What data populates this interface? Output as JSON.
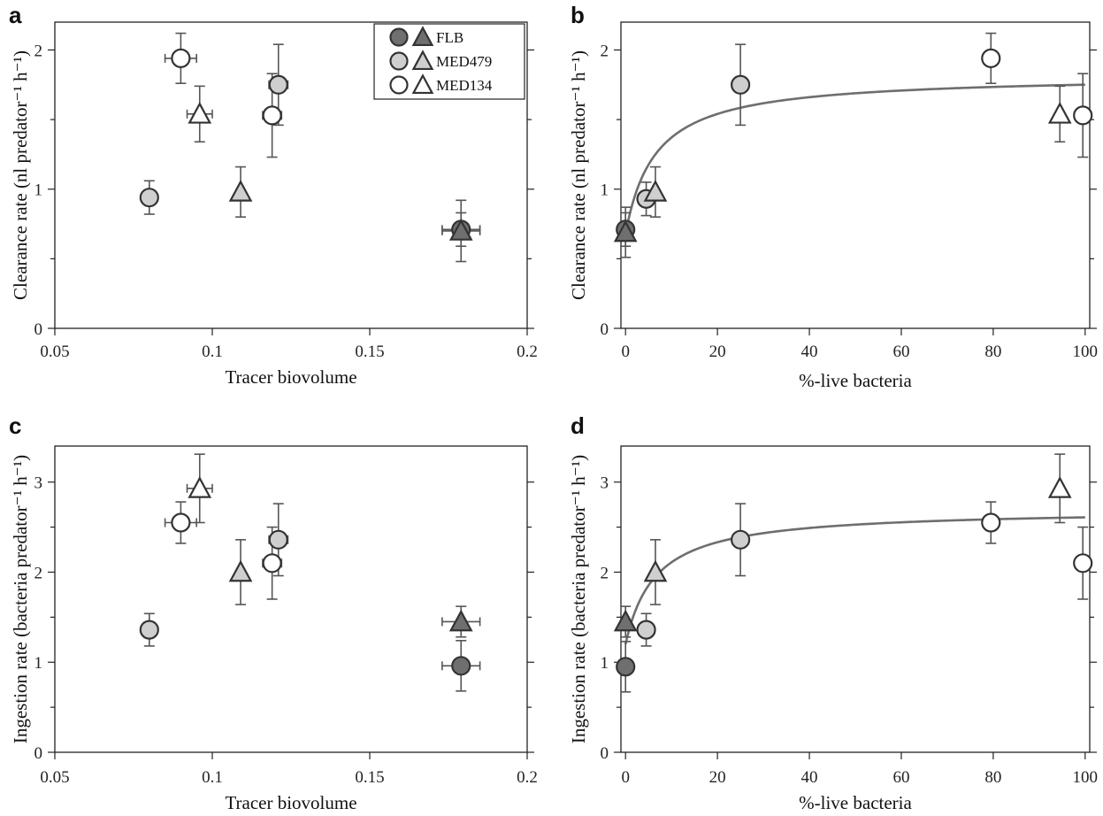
{
  "colors": {
    "FLB": "#6f6f6f",
    "MED479": "#cfcfcf",
    "MED134": "#ffffff",
    "fit": "#6e6e6e"
  },
  "legend": [
    {
      "label": "FLB",
      "group": "FLB"
    },
    {
      "label": "MED479",
      "group": "MED479"
    },
    {
      "label": "MED134",
      "group": "MED134"
    }
  ],
  "chart_data": [
    {
      "panel": "a",
      "type": "scatter",
      "xlabel": "Tracer biovolume",
      "ylabel": "Clearance rate (nl predator⁻¹ h⁻¹)",
      "xlim": [
        0.05,
        0.2
      ],
      "ylim": [
        0,
        2.2
      ],
      "xticks": [
        0.05,
        0.1,
        0.15,
        0.2
      ],
      "xtick_labels": [
        "0.05",
        "0.1",
        "0.15",
        "0.2"
      ],
      "yticks": [
        0,
        1,
        2
      ],
      "ytick_labels": [
        "0",
        "1",
        "2"
      ],
      "minor_yticks": [
        0.5,
        1.5
      ],
      "legend": "top-right",
      "points": [
        {
          "x": 0.09,
          "y": 1.94,
          "xerr": 0.005,
          "yerr": 0.18,
          "group": "MED134",
          "marker": "circle"
        },
        {
          "x": 0.096,
          "y": 1.54,
          "xerr": 0.004,
          "yerr": 0.2,
          "group": "MED134",
          "marker": "triangle"
        },
        {
          "x": 0.08,
          "y": 0.94,
          "xerr": 0,
          "yerr": 0.12,
          "group": "MED479",
          "marker": "circle"
        },
        {
          "x": 0.109,
          "y": 0.98,
          "xerr": 0,
          "yerr": 0.18,
          "group": "MED479",
          "marker": "triangle"
        },
        {
          "x": 0.121,
          "y": 1.75,
          "xerr": 0.003,
          "yerr": 0.29,
          "group": "MED479",
          "marker": "circle"
        },
        {
          "x": 0.119,
          "y": 1.53,
          "xerr": 0.003,
          "yerr": 0.3,
          "group": "MED134",
          "marker": "circle"
        },
        {
          "x": 0.179,
          "y": 0.71,
          "xerr": 0.006,
          "yerr": 0.12,
          "group": "FLB",
          "marker": "circle"
        },
        {
          "x": 0.179,
          "y": 0.7,
          "xerr": 0.006,
          "yerr": 0.22,
          "group": "FLB",
          "marker": "triangle"
        }
      ]
    },
    {
      "panel": "b",
      "type": "scatter",
      "xlabel": "%-live bacteria",
      "ylabel": "Clearance rate (nl predator⁻¹ h⁻¹)",
      "xlim": [
        -1,
        101
      ],
      "ylim": [
        0,
        2.2
      ],
      "xticks": [
        0,
        20,
        40,
        60,
        80,
        100
      ],
      "xtick_labels": [
        "0",
        "20",
        "40",
        "60",
        "80",
        "100"
      ],
      "yticks": [
        0,
        1,
        2
      ],
      "ytick_labels": [
        "0",
        "1",
        "2"
      ],
      "minor_yticks": [
        0.5,
        1.5
      ],
      "fit": {
        "y0": 0.68,
        "ymax": 1.82,
        "k": 6.5,
        "x_range": [
          0,
          100
        ]
      },
      "points": [
        {
          "x": 0,
          "y": 0.71,
          "xerr": 0,
          "yerr": 0.12,
          "group": "FLB",
          "marker": "circle"
        },
        {
          "x": 0,
          "y": 0.69,
          "xerr": 0,
          "yerr": 0.18,
          "group": "FLB",
          "marker": "triangle"
        },
        {
          "x": 4.5,
          "y": 0.93,
          "xerr": 0,
          "yerr": 0.12,
          "group": "MED479",
          "marker": "circle"
        },
        {
          "x": 6.5,
          "y": 0.98,
          "xerr": 0,
          "yerr": 0.18,
          "group": "MED479",
          "marker": "triangle"
        },
        {
          "x": 25,
          "y": 1.75,
          "xerr": 0,
          "yerr": 0.29,
          "group": "MED479",
          "marker": "circle"
        },
        {
          "x": 79.5,
          "y": 1.94,
          "xerr": 0,
          "yerr": 0.18,
          "group": "MED134",
          "marker": "circle"
        },
        {
          "x": 94.5,
          "y": 1.54,
          "xerr": 0,
          "yerr": 0.2,
          "group": "MED134",
          "marker": "triangle"
        },
        {
          "x": 99.5,
          "y": 1.53,
          "xerr": 0,
          "yerr": 0.3,
          "group": "MED134",
          "marker": "circle"
        }
      ]
    },
    {
      "panel": "c",
      "type": "scatter",
      "xlabel": "Tracer biovolume",
      "ylabel": "Ingestion rate (bacteria predator⁻¹ h⁻¹)",
      "xlim": [
        0.05,
        0.2
      ],
      "ylim": [
        0,
        3.4
      ],
      "xticks": [
        0.05,
        0.1,
        0.15,
        0.2
      ],
      "xtick_labels": [
        "0.05",
        "0.1",
        "0.15",
        "0.2"
      ],
      "yticks": [
        0,
        1,
        2,
        3
      ],
      "ytick_labels": [
        "0",
        "1",
        "2",
        "3"
      ],
      "minor_yticks": [
        0.5,
        1.5,
        2.5
      ],
      "points": [
        {
          "x": 0.09,
          "y": 2.55,
          "xerr": 0.005,
          "yerr": 0.23,
          "group": "MED134",
          "marker": "circle"
        },
        {
          "x": 0.096,
          "y": 2.93,
          "xerr": 0.004,
          "yerr": 0.38,
          "group": "MED134",
          "marker": "triangle"
        },
        {
          "x": 0.08,
          "y": 1.36,
          "xerr": 0,
          "yerr": 0.18,
          "group": "MED479",
          "marker": "circle"
        },
        {
          "x": 0.109,
          "y": 2.0,
          "xerr": 0,
          "yerr": 0.36,
          "group": "MED479",
          "marker": "triangle"
        },
        {
          "x": 0.121,
          "y": 2.36,
          "xerr": 0.003,
          "yerr": 0.4,
          "group": "MED479",
          "marker": "circle"
        },
        {
          "x": 0.119,
          "y": 2.1,
          "xerr": 0.003,
          "yerr": 0.4,
          "group": "MED134",
          "marker": "circle"
        },
        {
          "x": 0.179,
          "y": 1.45,
          "xerr": 0.006,
          "yerr": 0.17,
          "group": "FLB",
          "marker": "triangle"
        },
        {
          "x": 0.179,
          "y": 0.96,
          "xerr": 0.006,
          "yerr": 0.28,
          "group": "FLB",
          "marker": "circle"
        }
      ]
    },
    {
      "panel": "d",
      "type": "scatter",
      "xlabel": "%-live bacteria",
      "ylabel": "Ingestion rate (bacteria predator⁻¹ h⁻¹)",
      "xlim": [
        -1,
        101
      ],
      "ylim": [
        0,
        3.4
      ],
      "xticks": [
        0,
        20,
        40,
        60,
        80,
        100
      ],
      "xtick_labels": [
        "0",
        "20",
        "40",
        "60",
        "80",
        "100"
      ],
      "yticks": [
        0,
        1,
        2,
        3
      ],
      "ytick_labels": [
        "0",
        "1",
        "2",
        "3"
      ],
      "minor_yticks": [
        0.5,
        1.5,
        2.5
      ],
      "fit": {
        "y0": 1.2,
        "ymax": 2.7,
        "k": 6.5,
        "x_range": [
          0,
          100
        ]
      },
      "points": [
        {
          "x": 0,
          "y": 1.45,
          "xerr": 0,
          "yerr": 0.17,
          "group": "FLB",
          "marker": "triangle"
        },
        {
          "x": 0,
          "y": 0.95,
          "xerr": 0,
          "yerr": 0.28,
          "group": "FLB",
          "marker": "circle"
        },
        {
          "x": 4.5,
          "y": 1.36,
          "xerr": 0,
          "yerr": 0.18,
          "group": "MED479",
          "marker": "circle"
        },
        {
          "x": 6.5,
          "y": 2.0,
          "xerr": 0,
          "yerr": 0.36,
          "group": "MED479",
          "marker": "triangle"
        },
        {
          "x": 25,
          "y": 2.36,
          "xerr": 0,
          "yerr": 0.4,
          "group": "MED479",
          "marker": "circle"
        },
        {
          "x": 79.5,
          "y": 2.55,
          "xerr": 0,
          "yerr": 0.23,
          "group": "MED134",
          "marker": "circle"
        },
        {
          "x": 94.5,
          "y": 2.93,
          "xerr": 0,
          "yerr": 0.38,
          "group": "MED134",
          "marker": "triangle"
        },
        {
          "x": 99.5,
          "y": 2.1,
          "xerr": 0,
          "yerr": 0.4,
          "group": "MED134",
          "marker": "circle"
        }
      ]
    }
  ]
}
